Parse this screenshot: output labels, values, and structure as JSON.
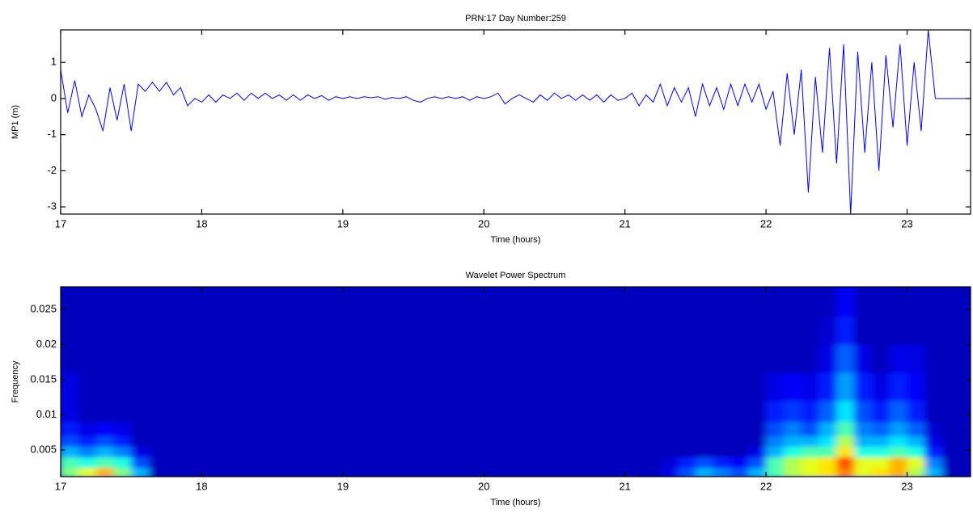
{
  "chart_data": [
    {
      "type": "line",
      "title": "PRN:17 Day Number:259",
      "xlabel": "Time (hours)",
      "ylabel": "MP1 (m)",
      "xlim": [
        17,
        23.45
      ],
      "xticks": [
        17,
        18,
        19,
        20,
        21,
        22,
        23
      ],
      "ylim": [
        -3.2,
        1.9
      ],
      "yticks": [
        -3,
        -2,
        -1,
        0,
        1
      ],
      "series": [
        {
          "color": "#0000ff",
          "x": [
            17.0,
            17.05,
            17.1,
            17.15,
            17.2,
            17.25,
            17.3,
            17.35,
            17.4,
            17.45,
            17.5,
            17.55,
            17.6,
            17.65,
            17.7,
            17.75,
            17.8,
            17.85,
            17.9,
            17.95,
            18.0,
            18.05,
            18.1,
            18.15,
            18.2,
            18.25,
            18.3,
            18.35,
            18.4,
            18.45,
            18.5,
            18.55,
            18.6,
            18.65,
            18.7,
            18.75,
            18.8,
            18.85,
            18.9,
            18.95,
            19.0,
            19.05,
            19.1,
            19.15,
            19.2,
            19.25,
            19.3,
            19.35,
            19.4,
            19.45,
            19.5,
            19.55,
            19.6,
            19.65,
            19.7,
            19.75,
            19.8,
            19.85,
            19.9,
            19.95,
            20.0,
            20.05,
            20.1,
            20.15,
            20.2,
            20.25,
            20.3,
            20.35,
            20.4,
            20.45,
            20.5,
            20.55,
            20.6,
            20.65,
            20.7,
            20.75,
            20.8,
            20.85,
            20.9,
            20.95,
            21.0,
            21.05,
            21.1,
            21.15,
            21.2,
            21.25,
            21.3,
            21.35,
            21.4,
            21.45,
            21.5,
            21.55,
            21.6,
            21.65,
            21.7,
            21.75,
            21.8,
            21.85,
            21.9,
            21.95,
            22.0,
            22.05,
            22.1,
            22.15,
            22.2,
            22.25,
            22.3,
            22.35,
            22.4,
            22.45,
            22.5,
            22.55,
            22.6,
            22.65,
            22.7,
            22.75,
            22.8,
            22.85,
            22.9,
            22.95,
            23.0,
            23.05,
            23.1,
            23.15,
            23.2,
            23.25,
            23.3,
            23.35,
            23.4,
            23.45
          ],
          "values": [
            0.8,
            -0.4,
            0.5,
            -0.5,
            0.1,
            -0.3,
            -0.9,
            0.3,
            -0.6,
            0.4,
            -0.9,
            0.4,
            0.2,
            0.45,
            0.2,
            0.45,
            0.1,
            0.3,
            -0.2,
            0.0,
            -0.1,
            0.1,
            -0.1,
            0.1,
            0.0,
            0.15,
            -0.05,
            0.15,
            0.0,
            0.15,
            0.0,
            0.1,
            -0.05,
            0.1,
            -0.05,
            0.1,
            0.0,
            0.08,
            -0.05,
            0.05,
            0.0,
            0.05,
            0.0,
            0.05,
            0.02,
            0.05,
            -0.02,
            0.03,
            0.0,
            0.05,
            -0.05,
            -0.1,
            0.0,
            0.05,
            0.0,
            0.05,
            0.0,
            0.05,
            -0.05,
            0.05,
            0.0,
            0.05,
            0.15,
            -0.15,
            0.0,
            0.1,
            0.0,
            -0.1,
            0.1,
            -0.05,
            0.15,
            0.0,
            0.1,
            -0.05,
            0.1,
            -0.05,
            0.1,
            -0.1,
            0.1,
            -0.05,
            0.0,
            0.15,
            -0.2,
            0.1,
            -0.1,
            0.4,
            -0.2,
            0.3,
            -0.1,
            0.3,
            -0.5,
            0.4,
            -0.2,
            0.3,
            -0.3,
            0.4,
            -0.2,
            0.4,
            -0.1,
            0.4,
            -0.3,
            0.2,
            -1.3,
            0.7,
            -1.0,
            0.8,
            -2.6,
            0.6,
            -1.5,
            1.4,
            -1.8,
            1.5,
            -3.2,
            1.3,
            -1.5,
            1.0,
            -2.0,
            1.2,
            -0.8,
            1.5,
            -1.3,
            1.0,
            -0.9,
            1.9,
            0,
            0,
            0,
            0,
            0,
            0
          ]
        }
      ]
    },
    {
      "type": "heatmap",
      "title": "Wavelet Power Spectrum",
      "xlabel": "Time (hours)",
      "ylabel": "Frequency",
      "xlim": [
        17,
        23.45
      ],
      "xticks": [
        17,
        18,
        19,
        20,
        21,
        22,
        23
      ],
      "ylim": [
        0.0012,
        0.0282
      ],
      "yticks": [
        0.005,
        0.01,
        0.015,
        0.02,
        0.025
      ],
      "colormap": "jet",
      "zlim": [
        0,
        1
      ],
      "xbins": [
        17,
        17.125,
        17.25,
        17.375,
        17.5,
        17.625,
        17.75,
        18.25,
        18.75,
        19.25,
        19.75,
        20.25,
        20.75,
        21.25,
        21.375,
        21.5,
        21.625,
        21.75,
        21.875,
        22,
        22.125,
        22.25,
        22.375,
        22.5,
        22.625,
        22.75,
        22.875,
        23,
        23.125,
        23.25,
        23.45
      ],
      "ybins": [
        0.0012,
        0.0025,
        0.004,
        0.0055,
        0.007,
        0.009,
        0.012,
        0.016,
        0.02,
        0.024,
        0.0282
      ],
      "z": [
        [
          0.5,
          0.6,
          0.7,
          0.5,
          0.3,
          0.06,
          0.06,
          0.06,
          0.06,
          0.06,
          0.06,
          0.06,
          0.06,
          0.1,
          0.2,
          0.3,
          0.25,
          0.2,
          0.3,
          0.45,
          0.55,
          0.6,
          0.65,
          0.75,
          0.6,
          0.65,
          0.7,
          0.55,
          0.3,
          0.06
        ],
        [
          0.45,
          0.4,
          0.45,
          0.4,
          0.2,
          0.06,
          0.06,
          0.06,
          0.06,
          0.06,
          0.06,
          0.06,
          0.06,
          0.08,
          0.15,
          0.2,
          0.15,
          0.12,
          0.2,
          0.45,
          0.55,
          0.6,
          0.65,
          0.8,
          0.6,
          0.6,
          0.7,
          0.6,
          0.25,
          0.06
        ],
        [
          0.3,
          0.25,
          0.3,
          0.25,
          0.1,
          0.06,
          0.06,
          0.06,
          0.06,
          0.06,
          0.06,
          0.06,
          0.06,
          0.06,
          0.06,
          0.06,
          0.06,
          0.06,
          0.1,
          0.3,
          0.4,
          0.45,
          0.45,
          0.65,
          0.4,
          0.4,
          0.45,
          0.4,
          0.15,
          0.06
        ],
        [
          0.2,
          0.15,
          0.2,
          0.15,
          0.06,
          0.06,
          0.06,
          0.06,
          0.06,
          0.06,
          0.06,
          0.06,
          0.06,
          0.06,
          0.06,
          0.06,
          0.06,
          0.06,
          0.06,
          0.25,
          0.3,
          0.3,
          0.35,
          0.55,
          0.3,
          0.3,
          0.35,
          0.3,
          0.1,
          0.06
        ],
        [
          0.15,
          0.1,
          0.12,
          0.1,
          0.06,
          0.06,
          0.06,
          0.06,
          0.06,
          0.06,
          0.06,
          0.06,
          0.06,
          0.06,
          0.06,
          0.06,
          0.06,
          0.06,
          0.06,
          0.2,
          0.25,
          0.2,
          0.3,
          0.45,
          0.25,
          0.22,
          0.28,
          0.22,
          0.08,
          0.06
        ],
        [
          0.1,
          0.06,
          0.06,
          0.06,
          0.06,
          0.06,
          0.06,
          0.06,
          0.06,
          0.06,
          0.06,
          0.06,
          0.06,
          0.06,
          0.06,
          0.06,
          0.06,
          0.06,
          0.06,
          0.15,
          0.18,
          0.15,
          0.22,
          0.35,
          0.2,
          0.15,
          0.22,
          0.15,
          0.06,
          0.06
        ],
        [
          0.1,
          0.06,
          0.06,
          0.06,
          0.06,
          0.06,
          0.06,
          0.06,
          0.06,
          0.06,
          0.06,
          0.06,
          0.06,
          0.06,
          0.06,
          0.06,
          0.06,
          0.06,
          0.06,
          0.1,
          0.12,
          0.1,
          0.15,
          0.28,
          0.15,
          0.1,
          0.15,
          0.12,
          0.06,
          0.06
        ],
        [
          0.06,
          0.06,
          0.06,
          0.06,
          0.06,
          0.06,
          0.06,
          0.06,
          0.06,
          0.06,
          0.06,
          0.06,
          0.06,
          0.06,
          0.06,
          0.06,
          0.06,
          0.06,
          0.06,
          0.06,
          0.06,
          0.06,
          0.1,
          0.22,
          0.1,
          0.06,
          0.1,
          0.1,
          0.06,
          0.06
        ],
        [
          0.06,
          0.06,
          0.06,
          0.06,
          0.06,
          0.06,
          0.06,
          0.06,
          0.06,
          0.06,
          0.06,
          0.06,
          0.06,
          0.06,
          0.06,
          0.06,
          0.06,
          0.06,
          0.06,
          0.06,
          0.06,
          0.06,
          0.08,
          0.15,
          0.06,
          0.06,
          0.06,
          0.06,
          0.06,
          0.06
        ],
        [
          0.06,
          0.06,
          0.06,
          0.06,
          0.06,
          0.06,
          0.06,
          0.06,
          0.06,
          0.06,
          0.06,
          0.06,
          0.06,
          0.06,
          0.06,
          0.06,
          0.06,
          0.06,
          0.06,
          0.06,
          0.06,
          0.06,
          0.06,
          0.12,
          0.06,
          0.06,
          0.06,
          0.06,
          0.06,
          0.06
        ]
      ]
    }
  ]
}
